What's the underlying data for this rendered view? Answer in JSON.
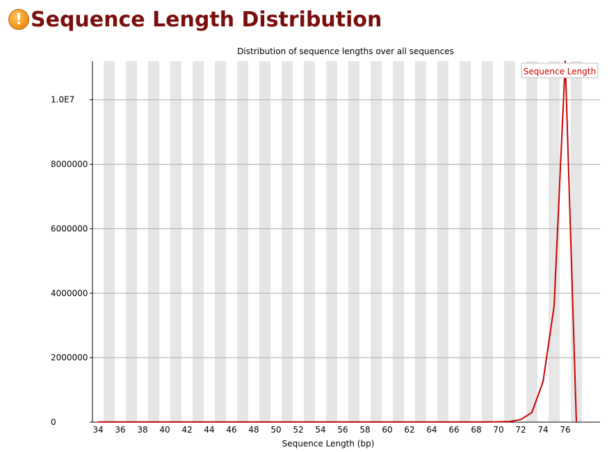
{
  "page": {
    "title": "Sequence Length Distribution",
    "status_icon": "warning-icon"
  },
  "chart_data": {
    "type": "line",
    "title": "Distribution of sequence lengths over all sequences",
    "xlabel": "Sequence Length (bp)",
    "ylabel": "",
    "x": [
      34,
      35,
      36,
      37,
      38,
      39,
      40,
      41,
      42,
      43,
      44,
      45,
      46,
      47,
      48,
      49,
      50,
      51,
      52,
      53,
      54,
      55,
      56,
      57,
      58,
      59,
      60,
      61,
      62,
      63,
      64,
      65,
      66,
      67,
      68,
      69,
      70,
      71,
      72,
      73,
      74,
      75,
      76,
      77
    ],
    "x_tick_labels": [
      "34",
      "36",
      "38",
      "40",
      "42",
      "44",
      "46",
      "48",
      "50",
      "52",
      "54",
      "56",
      "58",
      "60",
      "62",
      "64",
      "66",
      "68",
      "70",
      "72",
      "74",
      "76"
    ],
    "ylim": [
      0,
      11200000
    ],
    "y_ticks": [
      0,
      2000000,
      4000000,
      6000000,
      8000000,
      10000000
    ],
    "y_tick_labels": [
      "0",
      "2000000",
      "4000000",
      "6000000",
      "8000000",
      "1.0E7"
    ],
    "series": [
      {
        "name": "Sequence Length",
        "color": "#cc0000",
        "values": [
          5000,
          5000,
          5000,
          5000,
          5000,
          5000,
          5000,
          5000,
          5000,
          5000,
          5000,
          5000,
          5000,
          5000,
          5000,
          5000,
          5000,
          5000,
          5000,
          5000,
          5000,
          5000,
          5000,
          5000,
          5000,
          5000,
          5000,
          5000,
          5000,
          5000,
          5000,
          5000,
          5000,
          5000,
          5000,
          5000,
          10000,
          20000,
          80000,
          300000,
          1250000,
          3600000,
          11200000,
          0
        ]
      }
    ],
    "grid": true,
    "alternating_bands": true,
    "band_color": "#e6e6e6",
    "legend_position": "top-right"
  }
}
